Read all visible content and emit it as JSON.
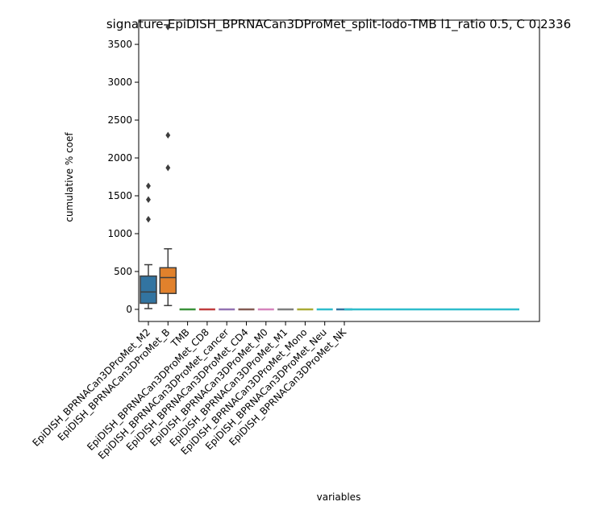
{
  "chart_data": {
    "type": "box",
    "title": "signature-EpiDISH_BPRNACan3DProMet_split-lodo-TMB l1_ratio 0.5, C 0.2336",
    "xlabel": "variables",
    "ylabel": "cumulative % coef",
    "ylim": [
      -160,
      3820
    ],
    "yticks": [
      0,
      500,
      1000,
      1500,
      2000,
      2500,
      3000,
      3500
    ],
    "grid": false,
    "categories": [
      "EpiDISH_BPRNACan3DProMet_M2",
      "EpiDISH_BPRNACan3DProMet_B",
      "TMB",
      "EpiDISH_BPRNACan3DProMet_CD8",
      "EpiDISH_BPRNACan3DProMet_cancer",
      "EpiDISH_BPRNACan3DProMet_CD4",
      "EpiDISH_BPRNACan3DProMet_M0",
      "EpiDISH_BPRNACan3DProMet_M1",
      "EpiDISH_BPRNACan3DProMet_Mono",
      "EpiDISH_BPRNACan3DProMet_Neu",
      "EpiDISH_BPRNACan3DProMet_NK"
    ],
    "boxes": [
      {
        "category": "EpiDISH_BPRNACan3DProMet_M2",
        "whislo": 10,
        "q1": 80,
        "median": 230,
        "q3": 440,
        "whishi": 590,
        "fliers": [
          1190,
          1450,
          1630
        ],
        "color": "#3274a1"
      },
      {
        "category": "EpiDISH_BPRNACan3DProMet_B",
        "whislo": 50,
        "q1": 210,
        "median": 420,
        "q3": 550,
        "whishi": 800,
        "fliers": [
          1870,
          2300,
          3730
        ],
        "color": "#e1812c"
      },
      {
        "category": "TMB",
        "whislo": 0,
        "q1": 0,
        "median": 0,
        "q3": 0,
        "whishi": 0,
        "fliers": [],
        "color": "#3a923a"
      },
      {
        "category": "EpiDISH_BPRNACan3DProMet_CD8",
        "whislo": 0,
        "q1": 0,
        "median": 0,
        "q3": 0,
        "whishi": 0,
        "fliers": [],
        "color": "#c03d3e"
      },
      {
        "category": "EpiDISH_BPRNACan3DProMet_cancer",
        "whislo": 0,
        "q1": 0,
        "median": 0,
        "q3": 0,
        "whishi": 0,
        "fliers": [],
        "color": "#9372b2"
      },
      {
        "category": "EpiDISH_BPRNACan3DProMet_CD4",
        "whislo": 0,
        "q1": 0,
        "median": 0,
        "q3": 0,
        "whishi": 0,
        "fliers": [],
        "color": "#845b53"
      },
      {
        "category": "EpiDISH_BPRNACan3DProMet_M0",
        "whislo": 0,
        "q1": 0,
        "median": 0,
        "q3": 0,
        "whishi": 0,
        "fliers": [],
        "color": "#d684bd"
      },
      {
        "category": "EpiDISH_BPRNACan3DProMet_M1",
        "whislo": 0,
        "q1": 0,
        "median": 0,
        "q3": 0,
        "whishi": 0,
        "fliers": [],
        "color": "#7f7f7f"
      },
      {
        "category": "EpiDISH_BPRNACan3DProMet_Mono",
        "whislo": 0,
        "q1": 0,
        "median": 0,
        "q3": 0,
        "whishi": 0,
        "fliers": [],
        "color": "#a9aa35"
      },
      {
        "category": "EpiDISH_BPRNACan3DProMet_Neu",
        "whislo": 0,
        "q1": 0,
        "median": 0,
        "q3": 0,
        "whishi": 0,
        "fliers": [],
        "color": "#2ebdcc"
      },
      {
        "category": "EpiDISH_BPRNACan3DProMet_NK",
        "whislo": 0,
        "q1": 0,
        "median": 0,
        "q3": 0,
        "whishi": 0,
        "fliers": [],
        "color": "#3274a1"
      }
    ]
  }
}
